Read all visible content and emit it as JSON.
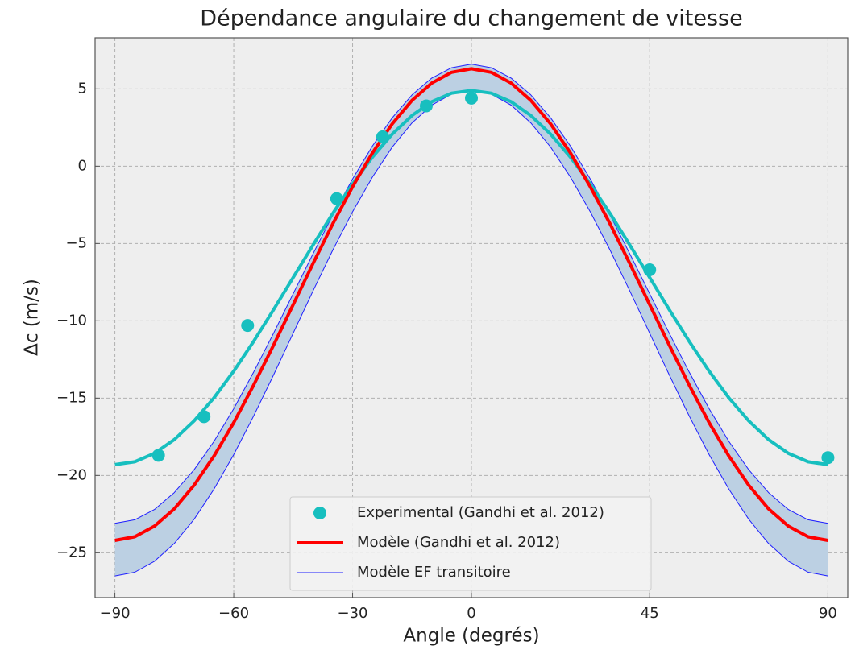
{
  "chart_data": {
    "type": "line",
    "title": "Dépendance angulaire du changement de vitesse",
    "xlabel": "Angle (degrés)",
    "ylabel": "Δc (m/s)",
    "xlim": [
      -95,
      95
    ],
    "ylim": [
      -27.9,
      8.3
    ],
    "xticks": [
      {
        "value": -90,
        "label": "−90"
      },
      {
        "value": -60,
        "label": "−60"
      },
      {
        "value": -30,
        "label": "−30"
      },
      0,
      45,
      90
    ],
    "yticks": [
      5,
      0,
      {
        "value": -5,
        "label": "−5"
      },
      {
        "value": -10,
        "label": "−10"
      },
      {
        "value": -15,
        "label": "−15"
      },
      {
        "value": -20,
        "label": "−20"
      },
      {
        "value": -25,
        "label": "−25"
      }
    ],
    "grid": true,
    "legend": "lower center",
    "x": [
      -90,
      -85,
      -80,
      -75,
      -70,
      -65,
      -60,
      -55,
      -50,
      -45,
      -40,
      -35,
      -30,
      -25,
      -20,
      -15,
      -10,
      -5,
      0,
      5,
      10,
      15,
      20,
      25,
      30,
      35,
      40,
      45,
      50,
      55,
      60,
      65,
      70,
      75,
      80,
      85,
      90
    ],
    "series": [
      {
        "type": "band",
        "name": "Modèle EF transitoire",
        "color": "#1f1fff",
        "fill": "#bcd0e3",
        "values": [
          -23.1,
          -22.87,
          -22.2,
          -21.11,
          -19.63,
          -17.8,
          -15.68,
          -13.33,
          -10.83,
          -8.25,
          -5.67,
          -3.17,
          -0.83,
          1.3,
          3.13,
          4.61,
          5.7,
          6.37,
          6.6,
          6.37,
          5.7,
          4.61,
          3.13,
          1.3,
          -0.83,
          -3.17,
          -5.67,
          -8.25,
          -10.83,
          -13.33,
          -15.68,
          -17.8,
          -19.63,
          -21.11,
          -22.2,
          -22.87,
          -23.1
        ],
        "lower": [
          -26.5,
          -26.26,
          -25.55,
          -24.4,
          -22.83,
          -20.89,
          -18.65,
          -16.17,
          -13.53,
          -10.8,
          -8.07,
          -5.43,
          -2.95,
          -0.71,
          1.23,
          2.8,
          3.95,
          4.66,
          4.9,
          4.66,
          3.95,
          2.8,
          1.23,
          -0.71,
          -2.95,
          -5.43,
          -8.07,
          -10.8,
          -13.53,
          -16.17,
          -18.65,
          -20.89,
          -22.83,
          -24.4,
          -25.55,
          -26.26,
          -26.5
        ]
      },
      {
        "type": "line",
        "color": "#17bfbf",
        "values": [
          -19.3,
          -19.12,
          -18.57,
          -17.68,
          -16.47,
          -14.98,
          -13.25,
          -11.34,
          -9.3,
          -7.2,
          -5.1,
          -3.06,
          -1.15,
          0.58,
          2.07,
          3.28,
          4.17,
          4.72,
          4.9,
          4.72,
          4.17,
          3.28,
          2.07,
          0.58,
          -1.15,
          -3.06,
          -5.1,
          -7.2,
          -9.3,
          -11.34,
          -13.25,
          -14.98,
          -16.47,
          -17.68,
          -18.57,
          -19.12,
          -19.3
        ]
      },
      {
        "type": "line",
        "name": "Modèle (Gandhi et al. 2012)",
        "color": "#ff0000",
        "values": [
          -24.2,
          -23.97,
          -23.28,
          -22.16,
          -20.63,
          -18.75,
          -16.58,
          -14.17,
          -11.6,
          -8.95,
          -6.3,
          -3.73,
          -1.33,
          0.85,
          2.73,
          4.26,
          5.38,
          6.07,
          6.3,
          6.07,
          5.38,
          4.26,
          2.73,
          0.85,
          -1.33,
          -3.73,
          -6.3,
          -8.95,
          -11.6,
          -14.17,
          -16.58,
          -18.75,
          -20.63,
          -22.16,
          -23.28,
          -23.97,
          -24.2
        ]
      },
      {
        "type": "scatter",
        "name": "Experimental (Gandhi et al. 2012)",
        "color": "#17bfbf",
        "x": [
          -79,
          -67.5,
          -56.5,
          -34,
          -22.4,
          -11.4,
          0,
          45,
          90
        ],
        "values": [
          -18.7,
          -16.2,
          -10.3,
          -2.1,
          1.9,
          3.9,
          4.4,
          -6.7,
          -18.85
        ]
      }
    ],
    "legend_order": [
      3,
      2,
      0
    ]
  }
}
